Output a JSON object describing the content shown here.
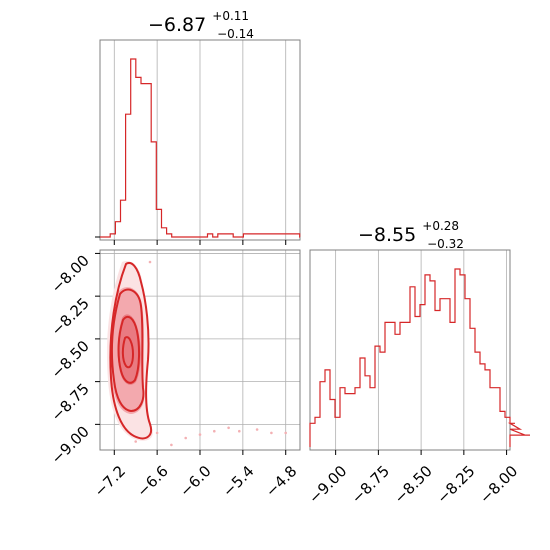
{
  "chart_data": [
    {
      "type": "histogram",
      "panel": "top-left",
      "title": {
        "median": "−6.87",
        "plus": "+0.11",
        "minus": "−0.14"
      },
      "xlim": [
        -7.4,
        -4.6
      ],
      "x_ticks": [
        -7.2,
        -6.6,
        -6.0,
        -5.4,
        -4.8
      ],
      "bin_edges_start": -7.4,
      "bin_width": 0.0717,
      "counts": [
        0,
        0,
        1,
        5,
        12,
        40,
        58,
        52,
        50,
        50,
        31,
        9,
        3,
        1,
        0,
        0,
        0,
        0,
        0,
        0,
        0,
        1,
        0,
        1,
        1,
        1,
        0,
        0,
        1,
        1,
        1,
        1,
        1,
        1,
        1,
        1,
        1,
        1,
        1,
        0
      ],
      "color": "#d62728"
    },
    {
      "type": "scatter",
      "panel": "bottom-left",
      "subtype": "2d-density-contour",
      "xlim": [
        -7.4,
        -4.6
      ],
      "ylim": [
        -9.15,
        -7.98
      ],
      "x_ticks": [
        -7.2,
        -6.6,
        -6.0,
        -5.4,
        -4.8
      ],
      "x_tick_labels": [
        "−7.2",
        "−6.6",
        "−6.0",
        "−5.4",
        "−4.8"
      ],
      "y_ticks": [
        -8.0,
        -8.25,
        -8.5,
        -8.75,
        -9.0
      ],
      "y_tick_labels": [
        "−8.00",
        "−8.25",
        "−8.50",
        "−8.75",
        "−9.00"
      ],
      "tail_points": [
        [
          -6.6,
          -9.05
        ],
        [
          -6.4,
          -9.12
        ],
        [
          -6.2,
          -9.08
        ],
        [
          -6.0,
          -9.06
        ],
        [
          -5.8,
          -9.04
        ],
        [
          -5.6,
          -9.02
        ],
        [
          -5.45,
          -9.04
        ],
        [
          -5.2,
          -9.03
        ],
        [
          -5.0,
          -9.05
        ],
        [
          -4.8,
          -9.05
        ],
        [
          -6.9,
          -8.2
        ],
        [
          -7.05,
          -8.8
        ],
        [
          -6.7,
          -8.05
        ],
        [
          -7.1,
          -8.3
        ],
        [
          -6.8,
          -9.0
        ],
        [
          -6.9,
          -9.1
        ]
      ],
      "color": "#d62728"
    },
    {
      "type": "histogram",
      "panel": "bottom-right",
      "title": {
        "median": "−8.55",
        "plus": "+0.28",
        "minus": "−0.32"
      },
      "xlim": [
        -9.15,
        -7.98
      ],
      "x_ticks": [
        -9.0,
        -8.75,
        -8.5,
        -8.25,
        -8.0
      ],
      "x_tick_labels": [
        "−9.00",
        "−8.75",
        "−8.50",
        "−8.25",
        "−8.00"
      ],
      "bin_edges_start": -9.15,
      "bin_width": 0.02925,
      "counts": [
        4,
        5,
        11,
        13,
        8,
        5,
        10,
        9,
        9,
        10,
        15,
        12,
        10,
        17,
        16,
        21,
        21,
        19,
        21,
        21,
        27,
        22,
        24,
        29,
        28,
        23,
        25,
        25,
        21,
        30,
        29,
        25,
        20,
        16,
        14,
        13,
        10,
        10,
        6,
        5,
        4,
        4,
        3,
        2,
        2
      ],
      "color": "#d62728"
    }
  ]
}
